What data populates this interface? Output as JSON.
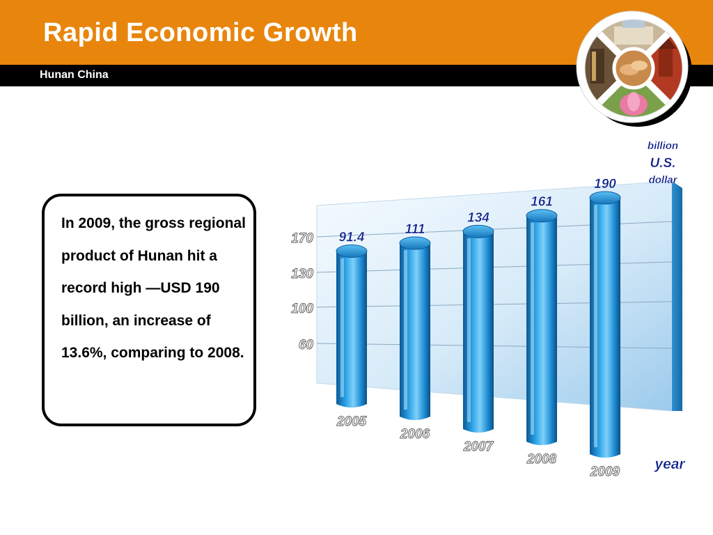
{
  "slide": {
    "title": "Rapid Economic Growth",
    "subtitle": "Hunan China",
    "body_text": "In 2009, the gross regional product of Hunan hit a record high —USD 190 billion, an increase of 13.6%, comparing to 2008."
  },
  "logo": {
    "name": "photo-collage-emblem",
    "quadrants": [
      "building-photo",
      "pagoda-photo",
      "lotus-photo",
      "interior-photo"
    ],
    "center": "handshake-photo"
  },
  "colors": {
    "header": "#e8850c",
    "subbar": "#000000",
    "bar": "#1a8fd6",
    "bar_dark": "#0d5f9e",
    "value_label": "#0c1f8a"
  },
  "chart_data": {
    "type": "bar",
    "categories": [
      "2005",
      "2006",
      "2007",
      "2008",
      "2009"
    ],
    "values": [
      91.4,
      111,
      134,
      161,
      190
    ],
    "value_labels": [
      "91.4",
      "111",
      "134",
      "161",
      "190"
    ],
    "y_ticks": [
      "60",
      "100",
      "130",
      "170"
    ],
    "unit_label": [
      "billion",
      "U.S.",
      "dollar"
    ],
    "xlabel": "year",
    "grid": true,
    "style": "3d-cylinder"
  }
}
